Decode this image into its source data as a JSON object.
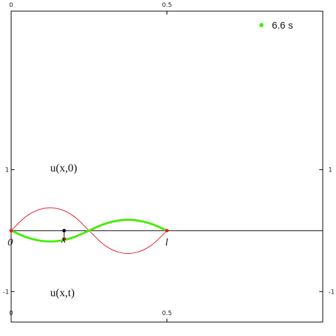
{
  "chart_data": {
    "type": "line",
    "x_range": [
      0,
      1
    ],
    "y_range": [
      -1.5,
      3.6
    ],
    "x_ticks": [
      {
        "value": 0,
        "label": "0"
      },
      {
        "value": 0.5,
        "label": "0.5"
      }
    ],
    "y_ticks": [
      {
        "value": 1,
        "label": "1"
      },
      {
        "value": -1,
        "label": "-1"
      }
    ],
    "string_length": 0.5,
    "series": [
      {
        "key": "initial",
        "color": "#e0202a",
        "x": [
          0,
          0.05,
          0.1,
          0.15,
          0.2,
          0.25,
          0.3,
          0.35,
          0.4,
          0.45,
          0.5
        ],
        "y": [
          0,
          0.24,
          0.36,
          0.36,
          0.24,
          0,
          -0.24,
          -0.36,
          -0.36,
          -0.24,
          0
        ]
      },
      {
        "key": "current",
        "color": "#44ee00",
        "x": [
          0,
          0.05,
          0.1,
          0.15,
          0.2,
          0.25,
          0.3,
          0.35,
          0.4,
          0.45,
          0.5
        ],
        "y": [
          0,
          -0.11,
          -0.17,
          -0.17,
          -0.11,
          0,
          0.11,
          0.17,
          0.17,
          0.11,
          0
        ]
      }
    ],
    "endpoints": [
      {
        "x": 0,
        "y": 0,
        "color": "#e0202a"
      },
      {
        "x": 0.5,
        "y": 0,
        "color": "#e0202a"
      }
    ],
    "probe": {
      "x": 0.17,
      "y0": 0,
      "y1": -0.14
    },
    "labels": {
      "initial": "u(x,0)",
      "current": "u(x,t)",
      "start": "0",
      "end": "l",
      "probe": "x"
    },
    "legend": {
      "text": "6.6 s",
      "color": "#44ee00",
      "placement": "top-right"
    }
  }
}
